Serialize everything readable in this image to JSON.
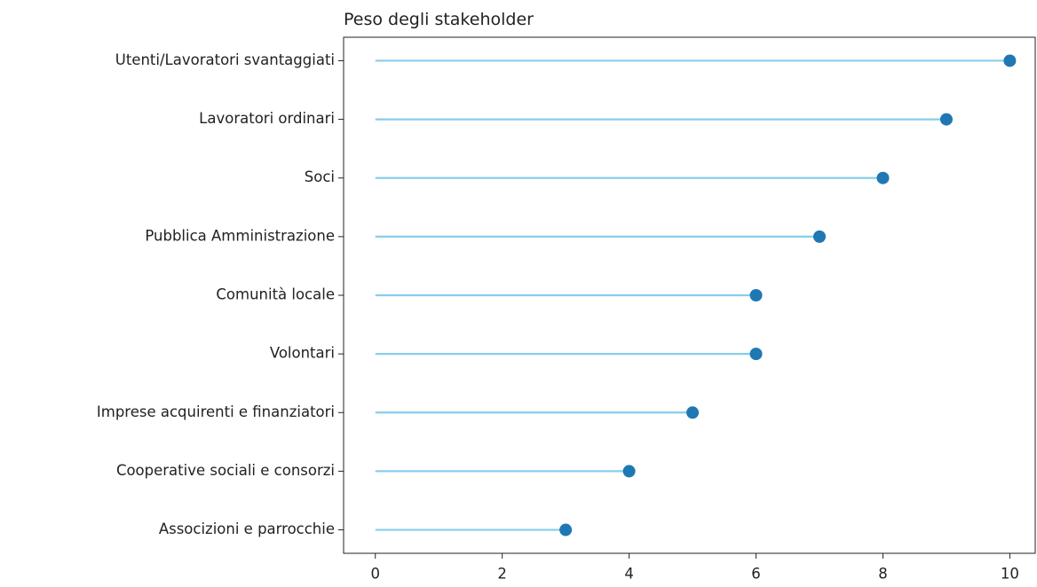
{
  "chart_data": {
    "type": "lollipop",
    "title": "Peso degli stakeholder",
    "categories": [
      "Utenti/Lavoratori svantaggiati",
      "Lavoratori ordinari",
      "Soci",
      "Pubblica Amministrazione",
      "Comunità locale",
      "Volontari",
      "Imprese acquirenti e finanziatori",
      "Cooperative sociali e consorzi",
      "Associzioni e parrocchie"
    ],
    "values": [
      10,
      9,
      8,
      7,
      6,
      6,
      5,
      4,
      3
    ],
    "stem_color": "#87ceeb",
    "color": "#1f77b4",
    "xlim": [
      -0.5,
      10.4
    ],
    "xticks": [
      0,
      2,
      4,
      6,
      8,
      10
    ],
    "grid": false
  }
}
